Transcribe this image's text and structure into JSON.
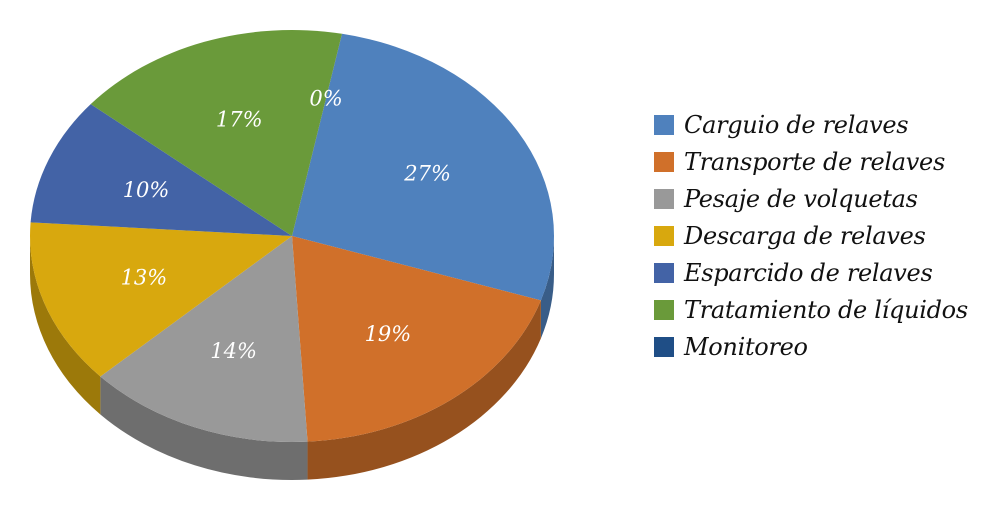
{
  "chart_data": {
    "type": "pie",
    "title": "",
    "slices": [
      {
        "label": "Carguio de relaves",
        "value": 27,
        "display": "27%",
        "color": "#4f81bd"
      },
      {
        "label": "Transporte de relaves",
        "value": 19,
        "display": "19%",
        "color": "#d0702a"
      },
      {
        "label": "Pesaje de volquetas",
        "value": 14,
        "display": "14%",
        "color": "#999999"
      },
      {
        "label": "Descarga de relaves",
        "value": 13,
        "display": "13%",
        "color": "#d8a80e"
      },
      {
        "label": "Esparcido de relaves",
        "value": 10,
        "display": "10%",
        "color": "#4363a6"
      },
      {
        "label": "Tratamiento de líquidos",
        "value": 17,
        "display": "17%",
        "color": "#6a9a3a"
      },
      {
        "label": "Monitoreo",
        "value": 0,
        "display": "0%",
        "color": "#1f4e86"
      }
    ],
    "legend_position": "right",
    "style": "3d-pie"
  }
}
